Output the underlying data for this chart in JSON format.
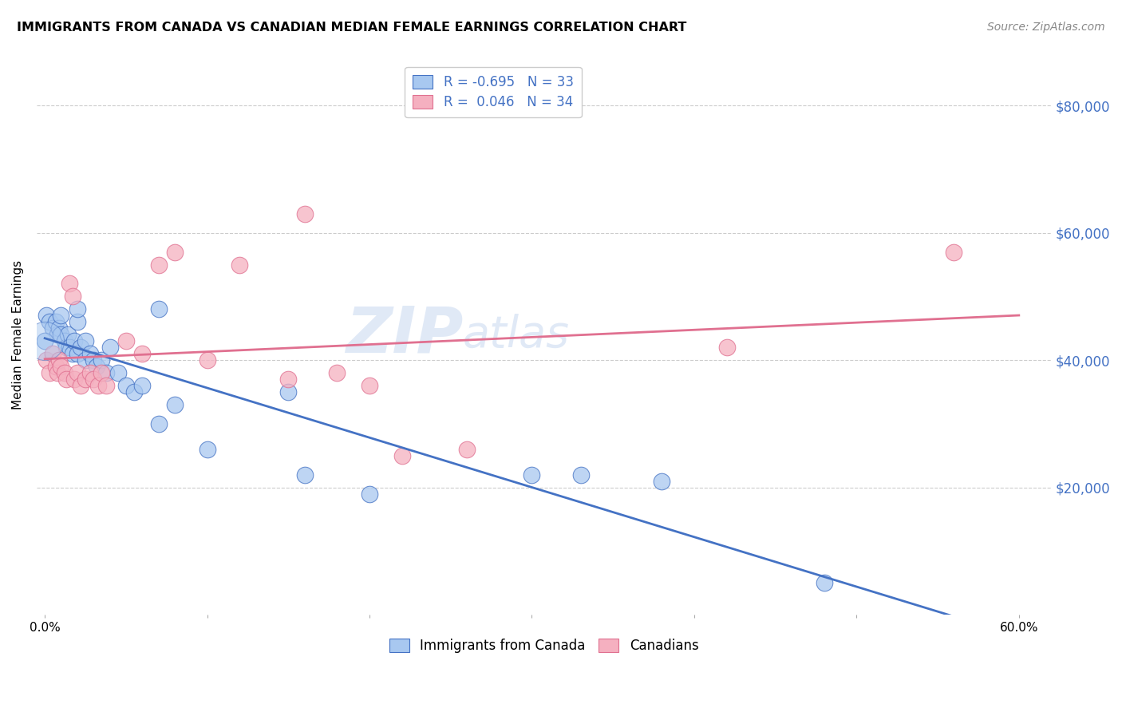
{
  "title": "IMMIGRANTS FROM CANADA VS CANADIAN MEDIAN FEMALE EARNINGS CORRELATION CHART",
  "source": "Source: ZipAtlas.com",
  "ylabel": "Median Female Earnings",
  "x_tick_labels": [
    "0.0%",
    "",
    "",
    "",
    "",
    "",
    "60.0%"
  ],
  "x_tick_positions": [
    0.0,
    0.1,
    0.2,
    0.3,
    0.4,
    0.5,
    0.6
  ],
  "y_tick_labels": [
    "$20,000",
    "$40,000",
    "$60,000",
    "$80,000"
  ],
  "y_tick_values": [
    20000,
    40000,
    60000,
    80000
  ],
  "xlim": [
    -0.005,
    0.62
  ],
  "ylim": [
    0,
    88000
  ],
  "color_blue": "#a8c8f0",
  "color_pink": "#f5b0c0",
  "line_blue": "#4472c4",
  "line_pink": "#e07090",
  "watermark_zip": "ZIP",
  "watermark_atlas": "atlas",
  "blue_scatter_x": [
    0.001,
    0.003,
    0.005,
    0.007,
    0.008,
    0.009,
    0.01,
    0.01,
    0.012,
    0.013,
    0.014,
    0.015,
    0.017,
    0.018,
    0.02,
    0.02,
    0.022,
    0.025,
    0.025,
    0.028,
    0.03,
    0.032,
    0.035,
    0.038,
    0.04,
    0.045,
    0.05,
    0.055,
    0.06,
    0.07,
    0.08,
    0.1,
    0.16
  ],
  "blue_scatter_y": [
    47000,
    46000,
    45000,
    46000,
    44000,
    45000,
    44000,
    47000,
    43000,
    42000,
    44000,
    42000,
    41000,
    43000,
    41000,
    46000,
    42000,
    43000,
    40000,
    41000,
    40000,
    39000,
    40000,
    38000,
    42000,
    38000,
    36000,
    35000,
    36000,
    30000,
    33000,
    26000,
    22000
  ],
  "blue_scatter_x2": [
    0.0,
    0.02,
    0.07,
    0.15,
    0.2,
    0.3,
    0.33,
    0.38,
    0.48
  ],
  "blue_scatter_y2": [
    43000,
    48000,
    48000,
    35000,
    19000,
    22000,
    22000,
    21000,
    5000
  ],
  "pink_scatter_x": [
    0.001,
    0.003,
    0.005,
    0.007,
    0.008,
    0.009,
    0.01,
    0.012,
    0.013,
    0.015,
    0.017,
    0.018,
    0.02,
    0.022,
    0.025,
    0.028,
    0.03,
    0.033,
    0.035,
    0.038,
    0.05,
    0.06,
    0.07,
    0.08,
    0.1,
    0.12,
    0.15,
    0.16,
    0.18,
    0.2,
    0.22,
    0.26,
    0.42,
    0.56
  ],
  "pink_scatter_y": [
    40000,
    38000,
    41000,
    39000,
    38000,
    40000,
    39000,
    38000,
    37000,
    52000,
    50000,
    37000,
    38000,
    36000,
    37000,
    38000,
    37000,
    36000,
    38000,
    36000,
    43000,
    41000,
    55000,
    57000,
    40000,
    55000,
    37000,
    63000,
    38000,
    36000,
    25000,
    26000,
    42000,
    57000
  ]
}
